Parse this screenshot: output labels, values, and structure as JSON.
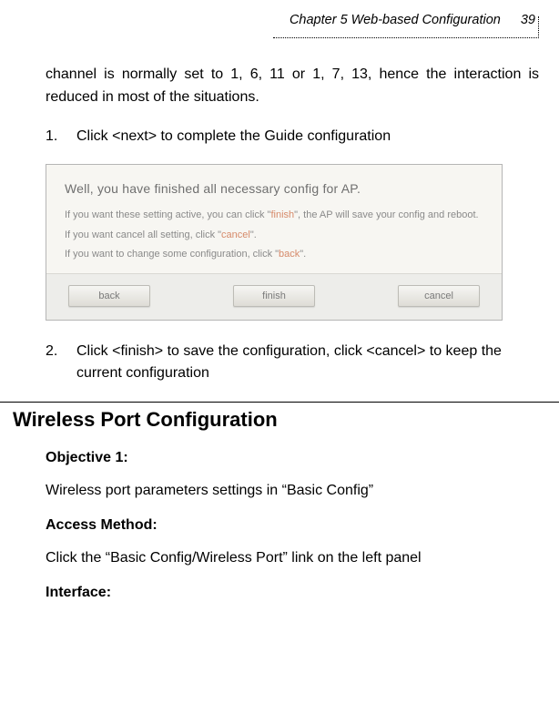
{
  "header": {
    "chapter": "Chapter 5 Web-based Configuration",
    "page": "39"
  },
  "intro_para": "channel is normally set to 1, 6, 11 or 1, 7, 13, hence the interaction is reduced in most of the situations.",
  "step1": {
    "num": "1.",
    "text": "Click <next> to complete the Guide configuration"
  },
  "screenshot": {
    "title": "Well, you have finished all necessary config for AP.",
    "lines": [
      {
        "pre": "If you want these setting active, you can click \"",
        "key": "finish",
        "post": "\", the AP will save your config and reboot."
      },
      {
        "pre": "If you want cancel all setting, click \"",
        "key": "cancel",
        "post": "\"."
      },
      {
        "pre": "If you want to change some configuration, click \"",
        "key": "back",
        "post": "\"."
      }
    ],
    "buttons": {
      "back": "back",
      "finish": "finish",
      "cancel": "cancel"
    }
  },
  "step2": {
    "num": "2.",
    "text": "Click <finish> to save the configuration, click <cancel> to keep the current configuration"
  },
  "section": {
    "title": "Wireless Port Configuration",
    "objective_label": "Objective 1:",
    "objective_text": "Wireless port parameters settings in “Basic Config”",
    "access_label": "Access Method:",
    "access_text": "Click the “Basic Config/Wireless Port” link on the left panel",
    "interface_label": "Interface:"
  }
}
